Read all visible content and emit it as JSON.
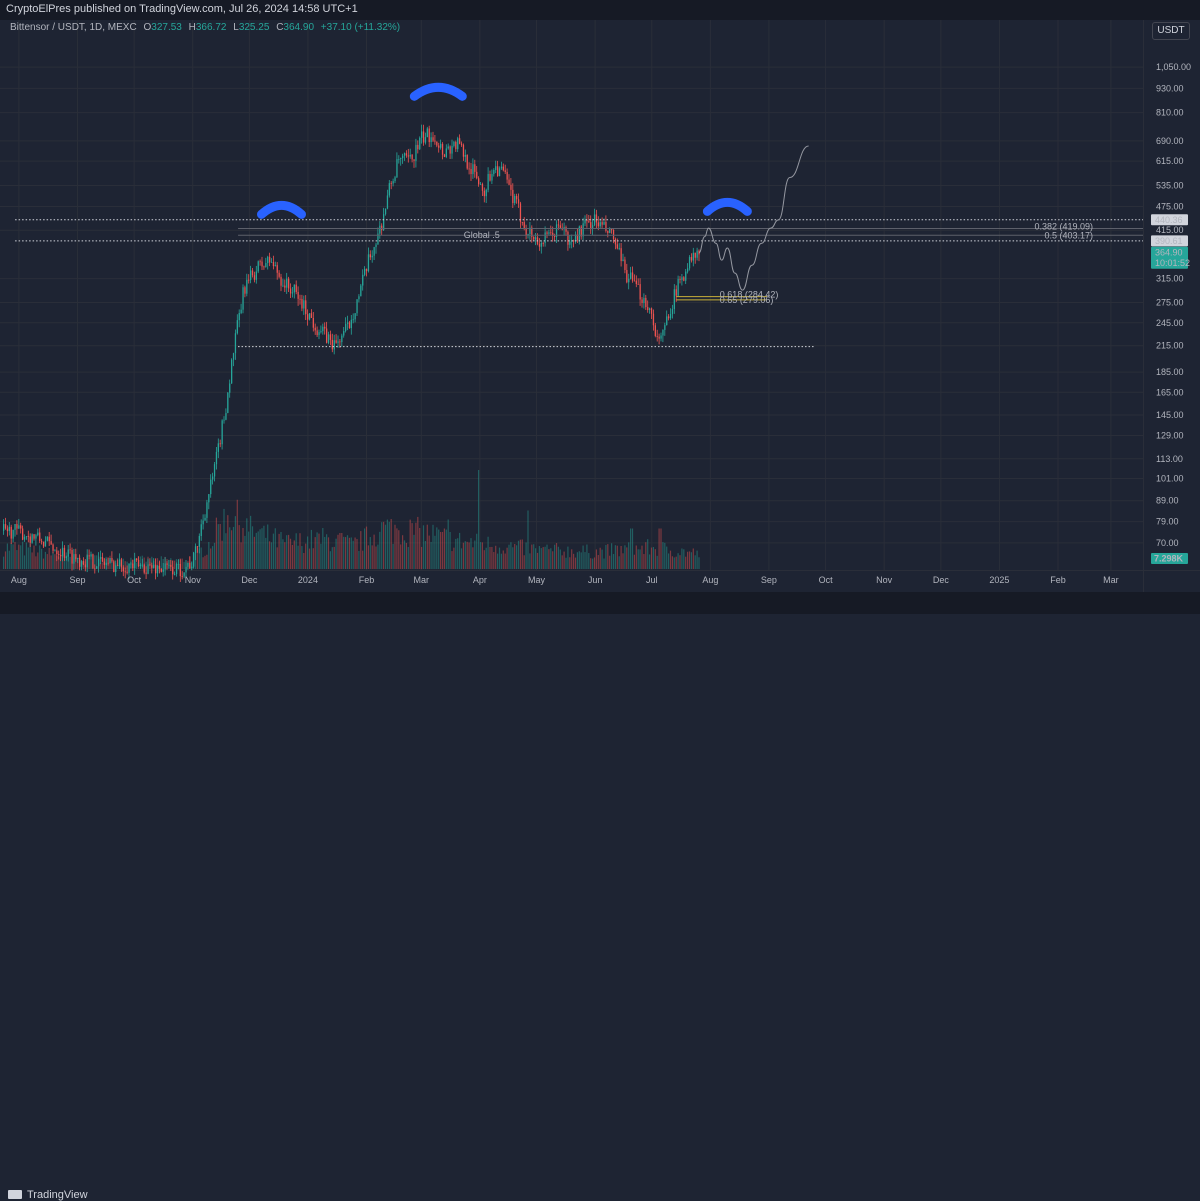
{
  "header": {
    "publisher_text": "CryptoElPres published on TradingView.com, Jul 26, 2024 14:58 UTC+1"
  },
  "legend": {
    "symbol": "Bittensor / USDT, 1D, MEXC",
    "open": "327.53",
    "high": "366.72",
    "low": "325.25",
    "close": "364.90",
    "change": "+37.10 (+11.32%)"
  },
  "currency_button": "USDT",
  "footer": {
    "brand": "TradingView"
  },
  "colors": {
    "up": "#26a69a",
    "down": "#ef5350",
    "background": "#1e2433",
    "grid": "#2a2e39",
    "shape_blue": "#2962ff",
    "fib_yellow": "#c9b038"
  },
  "chart_data": {
    "type": "candlestick",
    "scale": "log",
    "y_ticks": [
      "1,050.00",
      "930.00",
      "810.00",
      "690.00",
      "615.00",
      "535.00",
      "475.00",
      "415.00",
      "315.00",
      "275.00",
      "245.00",
      "215.00",
      "185.00",
      "165.00",
      "145.00",
      "129.00",
      "113.00",
      "101.00",
      "89.00",
      "79.00",
      "70.00"
    ],
    "x_labels": [
      {
        "label": "Aug",
        "date": "2023-08-01"
      },
      {
        "label": "Sep",
        "date": "2023-09-01"
      },
      {
        "label": "Oct",
        "date": "2023-10-01"
      },
      {
        "label": "Nov",
        "date": "2023-11-01"
      },
      {
        "label": "Dec",
        "date": "2023-12-01"
      },
      {
        "label": "2024",
        "date": "2024-01-01"
      },
      {
        "label": "Feb",
        "date": "2024-02-01"
      },
      {
        "label": "Mar",
        "date": "2024-03-01"
      },
      {
        "label": "Apr",
        "date": "2024-04-01"
      },
      {
        "label": "May",
        "date": "2024-05-01"
      },
      {
        "label": "Jun",
        "date": "2024-06-01"
      },
      {
        "label": "Jul",
        "date": "2024-07-01"
      },
      {
        "label": "Aug",
        "date": "2024-08-01"
      },
      {
        "label": "Sep",
        "date": "2024-09-01"
      },
      {
        "label": "Oct",
        "date": "2024-10-01"
      },
      {
        "label": "Nov",
        "date": "2024-11-01"
      },
      {
        "label": "Dec",
        "date": "2024-12-01"
      },
      {
        "label": "2025",
        "date": "2025-01-01"
      },
      {
        "label": "Feb",
        "date": "2025-02-01"
      },
      {
        "label": "Mar",
        "date": "2025-03-01"
      }
    ],
    "price_path": [
      [
        "2023-07-30",
        75
      ],
      [
        "2023-08-10",
        72
      ],
      [
        "2023-08-20",
        68
      ],
      [
        "2023-09-01",
        64
      ],
      [
        "2023-09-20",
        62
      ],
      [
        "2023-10-10",
        61
      ],
      [
        "2023-10-25",
        60
      ],
      [
        "2023-11-01",
        63
      ],
      [
        "2023-11-06",
        80
      ],
      [
        "2023-11-12",
        105
      ],
      [
        "2023-11-18",
        150
      ],
      [
        "2023-11-23",
        220
      ],
      [
        "2023-11-28",
        300
      ],
      [
        "2023-12-05",
        335
      ],
      [
        "2023-12-12",
        350
      ],
      [
        "2023-12-18",
        310
      ],
      [
        "2023-12-25",
        290
      ],
      [
        "2024-01-05",
        240
      ],
      [
        "2024-01-15",
        215
      ],
      [
        "2024-01-22",
        240
      ],
      [
        "2024-01-28",
        290
      ],
      [
        "2024-02-02",
        350
      ],
      [
        "2024-02-08",
        420
      ],
      [
        "2024-02-13",
        530
      ],
      [
        "2024-02-18",
        620
      ],
      [
        "2024-02-24",
        615
      ],
      [
        "2024-03-01",
        700
      ],
      [
        "2024-03-07",
        720
      ],
      [
        "2024-03-12",
        650
      ],
      [
        "2024-03-20",
        680
      ],
      [
        "2024-03-27",
        590
      ],
      [
        "2024-04-03",
        520
      ],
      [
        "2024-04-08",
        600
      ],
      [
        "2024-04-13",
        575
      ],
      [
        "2024-04-18",
        500
      ],
      [
        "2024-04-25",
        420
      ],
      [
        "2024-05-02",
        385
      ],
      [
        "2024-05-08",
        400
      ],
      [
        "2024-05-14",
        430
      ],
      [
        "2024-05-18",
        380
      ],
      [
        "2024-05-25",
        420
      ],
      [
        "2024-05-31",
        440
      ],
      [
        "2024-06-05",
        420
      ],
      [
        "2024-06-10",
        400
      ],
      [
        "2024-06-16",
        330
      ],
      [
        "2024-06-22",
        300
      ],
      [
        "2024-06-29",
        270
      ],
      [
        "2024-07-05",
        215
      ],
      [
        "2024-07-10",
        265
      ],
      [
        "2024-07-15",
        305
      ],
      [
        "2024-07-20",
        345
      ],
      [
        "2024-07-26",
        365
      ]
    ],
    "volume_path": [
      [
        "2023-07-30",
        0.5
      ],
      [
        "2023-09-01",
        0.25
      ],
      [
        "2023-10-28",
        0.2
      ],
      [
        "2023-11-08",
        0.5
      ],
      [
        "2023-11-20",
        1.3
      ],
      [
        "2023-12-01",
        0.9
      ],
      [
        "2023-12-20",
        0.6
      ],
      [
        "2024-01-10",
        0.7
      ],
      [
        "2024-01-25",
        0.55
      ],
      [
        "2024-02-10",
        0.95
      ],
      [
        "2024-03-01",
        0.85
      ],
      [
        "2024-03-20",
        0.65
      ],
      [
        "2024-04-10",
        0.55
      ],
      [
        "2024-05-01",
        0.45
      ],
      [
        "2024-06-01",
        0.4
      ],
      [
        "2024-07-01",
        0.5
      ],
      [
        "2024-07-26",
        0.35
      ]
    ],
    "volume_spikes": [
      [
        "2023-11-15",
        1.0
      ],
      [
        "2024-01-18",
        0.8
      ],
      [
        "2024-03-15",
        1.1
      ],
      [
        "2024-03-31",
        2.2
      ],
      [
        "2024-04-26",
        1.3
      ],
      [
        "2024-06-20",
        0.9
      ],
      [
        "2024-07-05",
        0.9
      ]
    ],
    "levels": [
      {
        "name": "resistance-top",
        "price": 440.36,
        "label": "440.36",
        "style": "dotted",
        "from": "2023-07-30"
      },
      {
        "name": "resistance-bottom",
        "price": 390.61,
        "label": "390.61",
        "style": "dotted",
        "from": "2023-07-30"
      },
      {
        "name": "support",
        "price": 214,
        "style": "dotted",
        "from": "2023-11-25",
        "to": "2024-09-25"
      }
    ],
    "fib_levels": [
      {
        "label": "0.382 (419.09)",
        "price": 419.09,
        "from": "2023-11-25",
        "color": "#5d606b"
      },
      {
        "label": "0.5 (403.17)",
        "price": 403.17,
        "from": "2023-11-25",
        "color": "#5d606b"
      },
      {
        "label": "0.618 (284.42)",
        "price": 284.42,
        "from": "2024-07-14",
        "to": "2024-08-31",
        "color": "#c9b038"
      },
      {
        "label": "0.65 (279.06)",
        "price": 279.06,
        "from": "2024-07-14",
        "to": "2024-08-31",
        "color": "#c9b038"
      }
    ],
    "global_label": {
      "text": "Global .5",
      "date": "2024-04-02",
      "price": 395
    },
    "projection_path": [
      [
        "2024-07-26",
        365
      ],
      [
        "2024-07-29",
        400
      ],
      [
        "2024-07-31",
        420
      ],
      [
        "2024-08-04",
        385
      ],
      [
        "2024-08-07",
        350
      ],
      [
        "2024-08-10",
        375
      ],
      [
        "2024-08-14",
        325
      ],
      [
        "2024-08-18",
        295
      ],
      [
        "2024-08-23",
        340
      ],
      [
        "2024-08-28",
        385
      ],
      [
        "2024-09-02",
        420
      ],
      [
        "2024-09-06",
        440
      ],
      [
        "2024-09-12",
        560
      ],
      [
        "2024-09-22",
        670
      ]
    ],
    "shapes": [
      {
        "name": "left-shoulder-arc",
        "date": "2023-12-18",
        "price": 470
      },
      {
        "name": "head-arc",
        "date": "2024-03-10",
        "price": 920
      },
      {
        "name": "right-shoulder-arc",
        "date": "2024-08-10",
        "price": 478
      }
    ],
    "price_tags": [
      {
        "name": "price-tag-440",
        "label": "440.36",
        "price": 440.36,
        "style": "light"
      },
      {
        "name": "price-tag-390",
        "label": "390.61",
        "price": 390.61,
        "style": "light"
      },
      {
        "name": "price-tag-current",
        "label": "364.90",
        "sublabel": "10:01:52",
        "price": 364.9,
        "style": "green"
      }
    ],
    "volume_label": "7.298K"
  }
}
